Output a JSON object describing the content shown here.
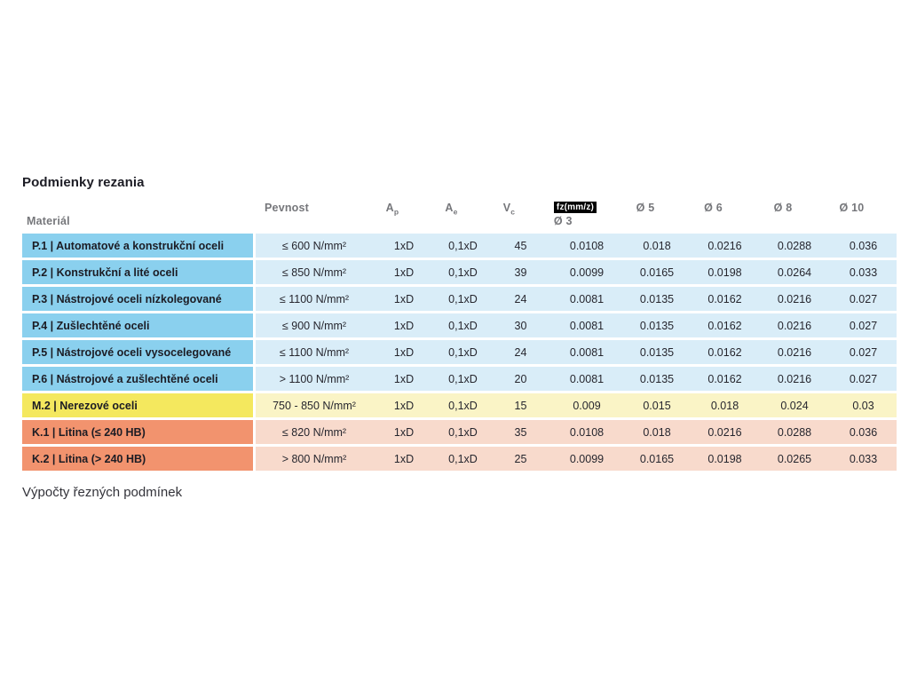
{
  "page": {
    "title": "Podmienky rezania",
    "footer_text": "Výpočty řezných podmínek"
  },
  "colors": {
    "blue_label": "#8ad0ee",
    "blue_bg": "#d9edf8",
    "yellow_label": "#f4e85e",
    "yellow_bg": "#faf4c6",
    "orange_label": "#f2936e",
    "orange_bg": "#f8dacc",
    "header_text": "#76777b",
    "badge_bg": "#000000",
    "badge_fg": "#ffffff"
  },
  "table": {
    "headers": {
      "material": "Materiál",
      "pevnost": "Pevnost",
      "ap_base": "A",
      "ap_sub": "p",
      "ae_base": "A",
      "ae_sub": "e",
      "vc_base": "V",
      "vc_sub": "c",
      "fz_badge": "fz(mm/z)",
      "d3": "Ø 3",
      "d5": "Ø 5",
      "d6": "Ø 6",
      "d8": "Ø 8",
      "d10": "Ø 10"
    },
    "rows": [
      {
        "group": "blue",
        "first": false,
        "material": "P.1 | Automatové a konstrukční oceli",
        "pevnost": "≤ 600 N/mm²",
        "ap": "1xD",
        "ae": "0,1xD",
        "vc": "45",
        "fz": [
          "0.0108",
          "0.018",
          "0.0216",
          "0.0288",
          "0.036"
        ]
      },
      {
        "group": "blue",
        "first": false,
        "material": "P.2 | Konstrukční a lité oceli",
        "pevnost": "≤ 850 N/mm²",
        "ap": "1xD",
        "ae": "0,1xD",
        "vc": "39",
        "fz": [
          "0.0099",
          "0.0165",
          "0.0198",
          "0.0264",
          "0.033"
        ]
      },
      {
        "group": "blue",
        "first": false,
        "material": "P.3 | Nástrojové oceli nízkolegované",
        "pevnost": "≤ 1100 N/mm²",
        "ap": "1xD",
        "ae": "0,1xD",
        "vc": "24",
        "fz": [
          "0.0081",
          "0.0135",
          "0.0162",
          "0.0216",
          "0.027"
        ]
      },
      {
        "group": "blue",
        "first": false,
        "material": "P.4 | Zušlechtěné oceli",
        "pevnost": "≤ 900 N/mm²",
        "ap": "1xD",
        "ae": "0,1xD",
        "vc": "30",
        "fz": [
          "0.0081",
          "0.0135",
          "0.0162",
          "0.0216",
          "0.027"
        ]
      },
      {
        "group": "blue",
        "first": false,
        "material": "P.5 | Nástrojové oceli vysocelegované",
        "pevnost": "≤ 1100 N/mm²",
        "ap": "1xD",
        "ae": "0,1xD",
        "vc": "24",
        "fz": [
          "0.0081",
          "0.0135",
          "0.0162",
          "0.0216",
          "0.027"
        ]
      },
      {
        "group": "blue",
        "first": false,
        "material": "P.6 | Nástrojové a zušlechtěné oceli",
        "pevnost": "> 1100 N/mm²",
        "ap": "1xD",
        "ae": "0,1xD",
        "vc": "20",
        "fz": [
          "0.0081",
          "0.0135",
          "0.0162",
          "0.0216",
          "0.027"
        ]
      },
      {
        "group": "yellow",
        "first": true,
        "material": "M.2 | Nerezové oceli",
        "pevnost": "750 - 850 N/mm²",
        "ap": "1xD",
        "ae": "0,1xD",
        "vc": "15",
        "fz": [
          "0.009",
          "0.015",
          "0.018",
          "0.024",
          "0.03"
        ]
      },
      {
        "group": "orange",
        "first": true,
        "material": "K.1 | Litina (≤ 240 HB)",
        "pevnost": "≤ 820 N/mm²",
        "ap": "1xD",
        "ae": "0,1xD",
        "vc": "35",
        "fz": [
          "0.0108",
          "0.018",
          "0.0216",
          "0.0288",
          "0.036"
        ]
      },
      {
        "group": "orange",
        "first": false,
        "material": "K.2 | Litina (> 240 HB)",
        "pevnost": "> 800 N/mm²",
        "ap": "1xD",
        "ae": "0,1xD",
        "vc": "25",
        "fz": [
          "0.0099",
          "0.0165",
          "0.0198",
          "0.0265",
          "0.033"
        ]
      }
    ]
  }
}
